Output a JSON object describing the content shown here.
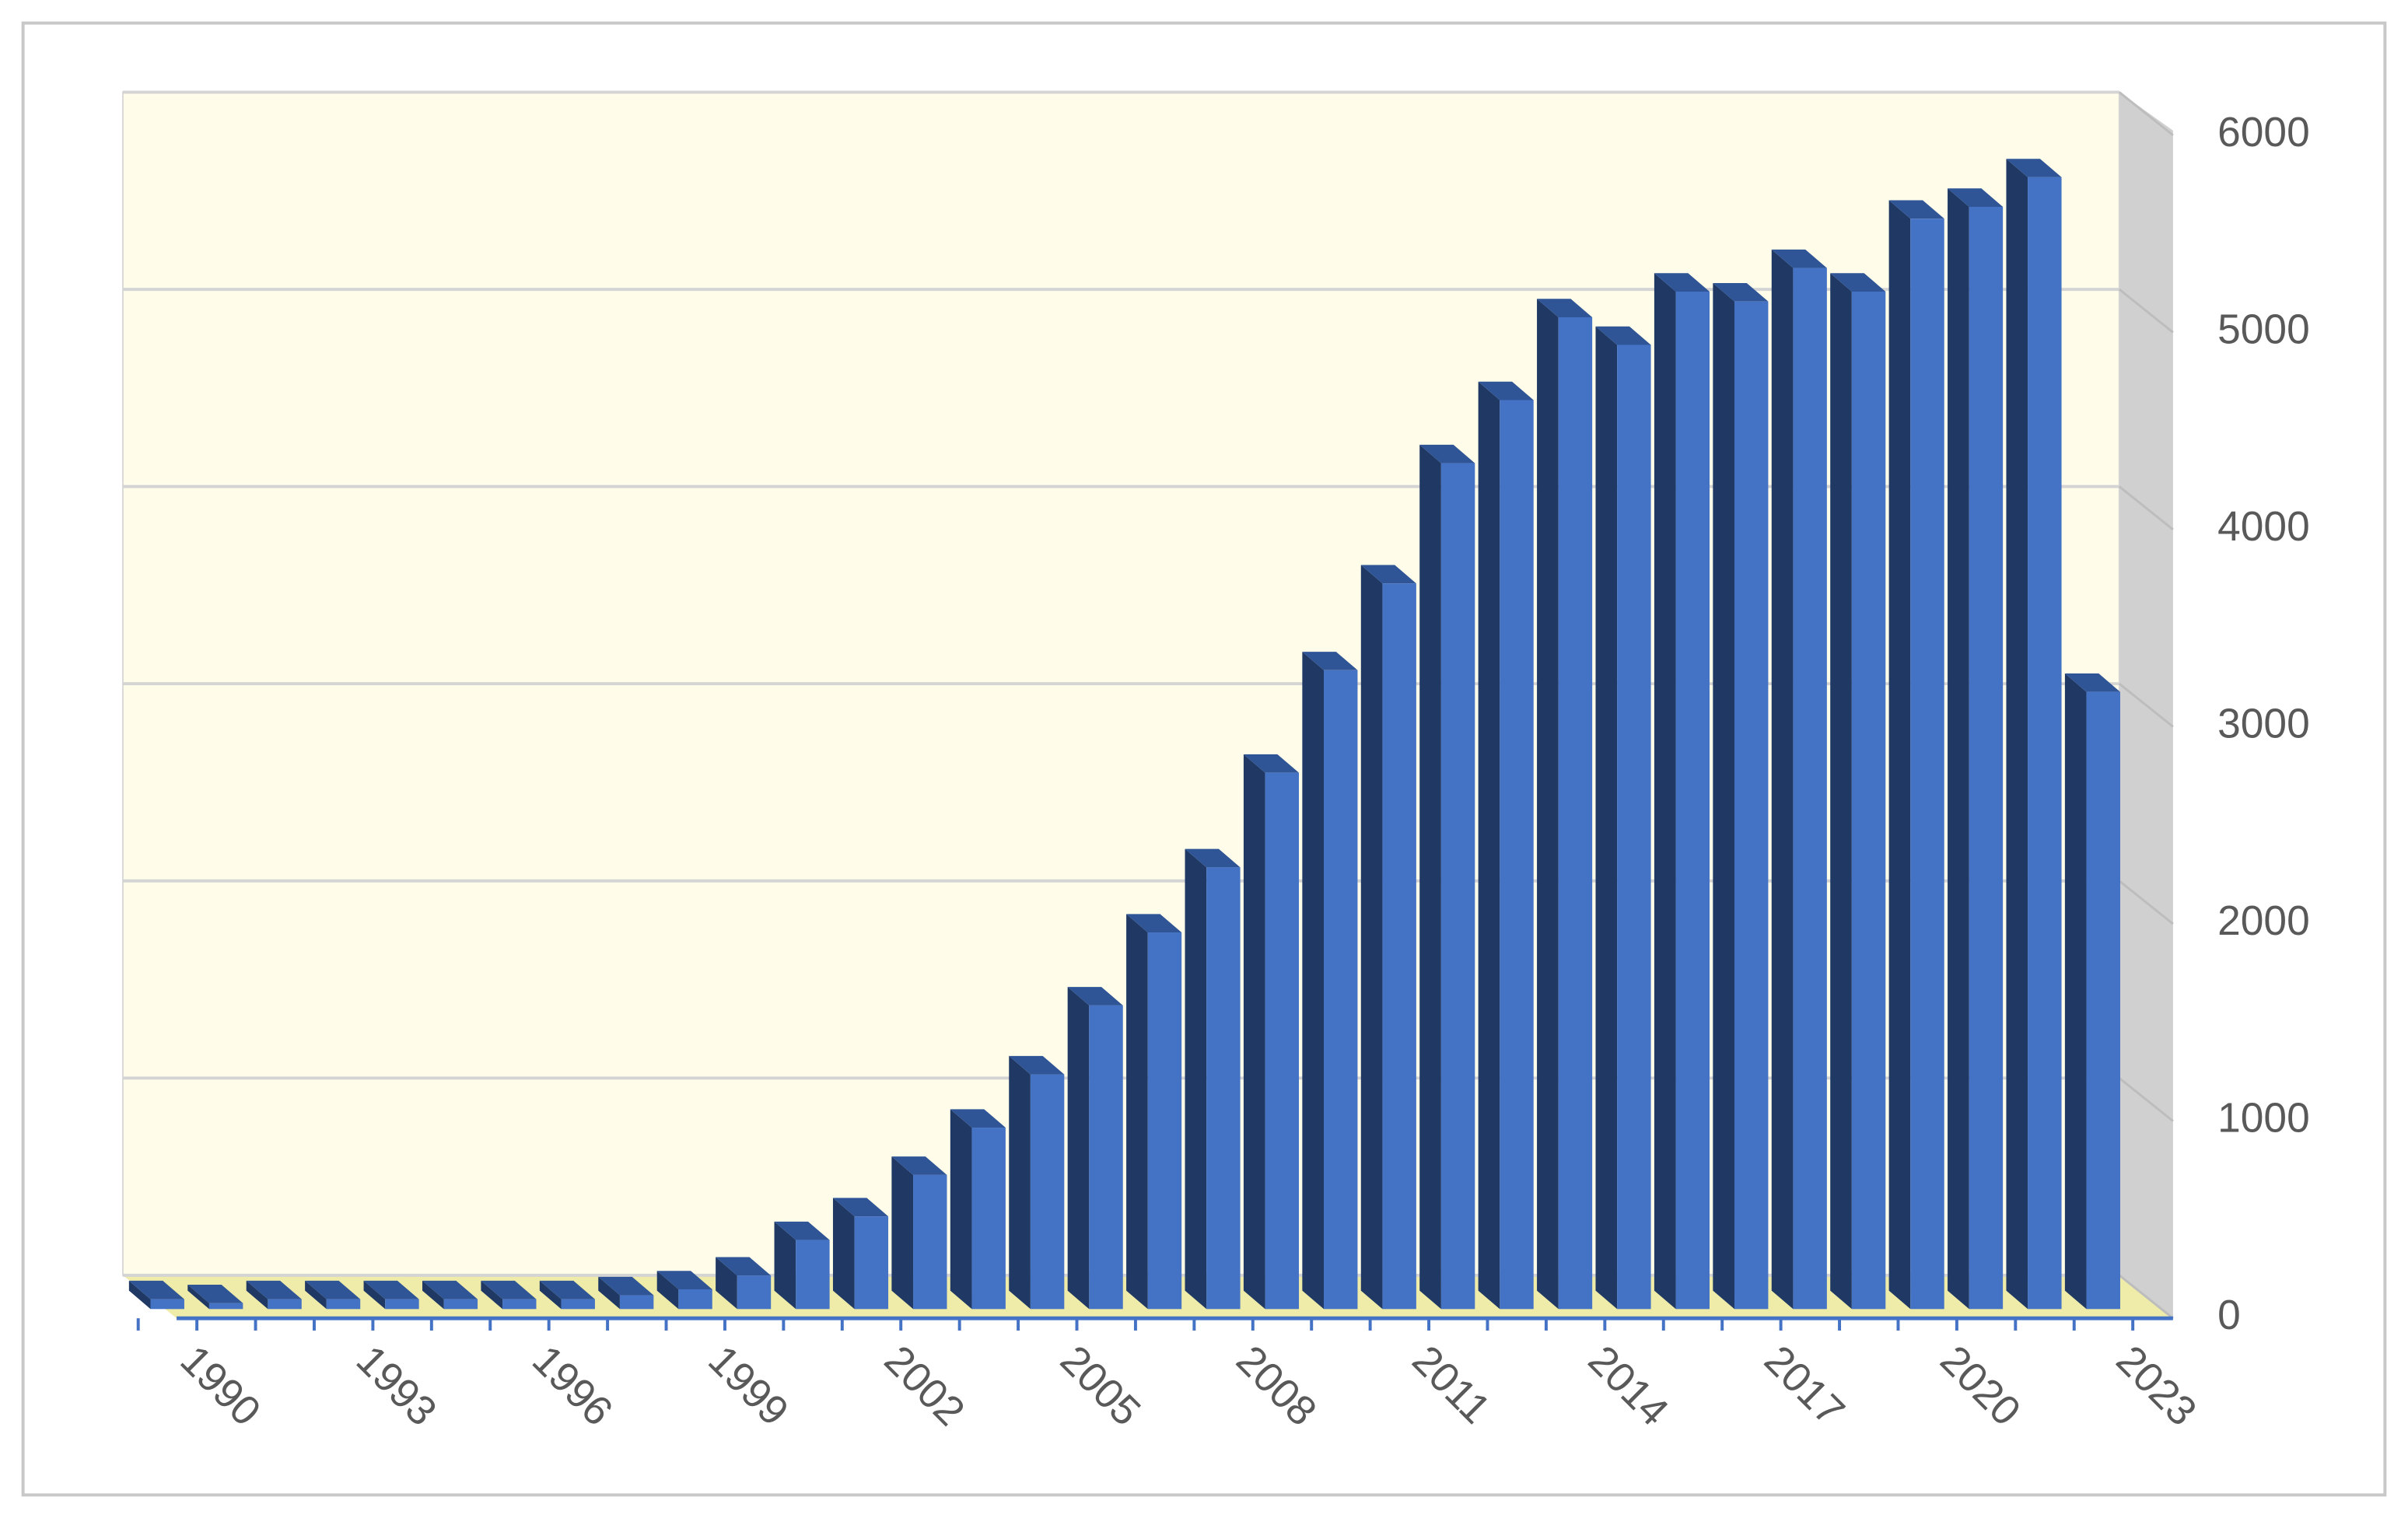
{
  "chart_data": {
    "type": "bar3d",
    "categories": [
      "1990",
      null,
      null,
      "1993",
      null,
      null,
      "1996",
      null,
      null,
      "1999",
      null,
      null,
      "2002",
      null,
      null,
      "2005",
      null,
      null,
      "2008",
      null,
      null,
      "2011",
      null,
      null,
      "2014",
      null,
      null,
      "2017",
      null,
      null,
      "2020",
      null,
      null,
      "2023"
    ],
    "values": [
      50,
      30,
      50,
      50,
      50,
      50,
      50,
      50,
      70,
      100,
      170,
      350,
      470,
      680,
      920,
      1190,
      1540,
      1910,
      2240,
      2720,
      3240,
      3680,
      4290,
      4610,
      5030,
      4890,
      5160,
      5110,
      5280,
      5160,
      5530,
      5590,
      5740,
      3130
    ],
    "color": "#4472c4",
    "ylim": [
      0,
      6000
    ],
    "yticks": [
      0,
      1000,
      2000,
      3000,
      4000,
      5000,
      6000
    ],
    "grid": true
  }
}
